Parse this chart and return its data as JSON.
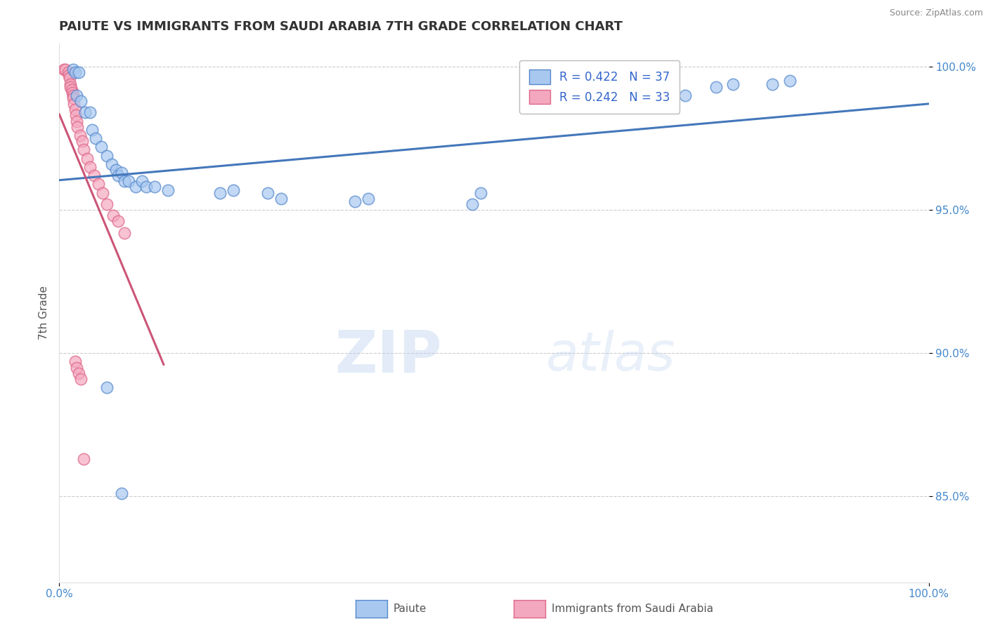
{
  "title": "PAIUTE VS IMMIGRANTS FROM SAUDI ARABIA 7TH GRADE CORRELATION CHART",
  "source": "Source: ZipAtlas.com",
  "ylabel": "7th Grade",
  "xlim": [
    0.0,
    1.0
  ],
  "ylim": [
    0.82,
    1.008
  ],
  "yticks": [
    0.85,
    0.9,
    0.95,
    1.0
  ],
  "ytick_labels": [
    "85.0%",
    "90.0%",
    "95.0%",
    "100.0%"
  ],
  "xtick_labels": [
    "0.0%",
    "100.0%"
  ],
  "legend_R_blue": "R = 0.422",
  "legend_N_blue": "N = 37",
  "legend_R_pink": "R = 0.242",
  "legend_N_pink": "N = 33",
  "blue_color": "#a8c8f0",
  "pink_color": "#f4a8c0",
  "blue_edge_color": "#5588cc",
  "pink_edge_color": "#dd6688",
  "blue_line_color": "#4477bb",
  "pink_line_color": "#cc5577",
  "blue_scatter": [
    [
      0.016,
      0.999
    ],
    [
      0.018,
      0.998
    ],
    [
      0.022,
      0.998
    ],
    [
      0.02,
      0.99
    ],
    [
      0.025,
      0.988
    ],
    [
      0.03,
      0.984
    ],
    [
      0.035,
      0.984
    ],
    [
      0.038,
      0.978
    ],
    [
      0.042,
      0.975
    ],
    [
      0.048,
      0.972
    ],
    [
      0.055,
      0.969
    ],
    [
      0.06,
      0.966
    ],
    [
      0.065,
      0.964
    ],
    [
      0.068,
      0.962
    ],
    [
      0.072,
      0.963
    ],
    [
      0.075,
      0.96
    ],
    [
      0.08,
      0.96
    ],
    [
      0.088,
      0.958
    ],
    [
      0.095,
      0.96
    ],
    [
      0.1,
      0.958
    ],
    [
      0.11,
      0.958
    ],
    [
      0.125,
      0.957
    ],
    [
      0.185,
      0.956
    ],
    [
      0.2,
      0.957
    ],
    [
      0.24,
      0.956
    ],
    [
      0.255,
      0.954
    ],
    [
      0.34,
      0.953
    ],
    [
      0.355,
      0.954
    ],
    [
      0.475,
      0.952
    ],
    [
      0.485,
      0.956
    ],
    [
      0.72,
      0.99
    ],
    [
      0.755,
      0.993
    ],
    [
      0.775,
      0.994
    ],
    [
      0.82,
      0.994
    ],
    [
      0.84,
      0.995
    ],
    [
      0.055,
      0.888
    ],
    [
      0.072,
      0.851
    ]
  ],
  "pink_scatter": [
    [
      0.005,
      0.999
    ],
    [
      0.007,
      0.999
    ],
    [
      0.01,
      0.998
    ],
    [
      0.011,
      0.997
    ],
    [
      0.012,
      0.996
    ],
    [
      0.013,
      0.994
    ],
    [
      0.013,
      0.993
    ],
    [
      0.014,
      0.992
    ],
    [
      0.015,
      0.991
    ],
    [
      0.016,
      0.99
    ],
    [
      0.016,
      0.989
    ],
    [
      0.017,
      0.987
    ],
    [
      0.018,
      0.985
    ],
    [
      0.019,
      0.983
    ],
    [
      0.02,
      0.981
    ],
    [
      0.021,
      0.979
    ],
    [
      0.024,
      0.976
    ],
    [
      0.026,
      0.974
    ],
    [
      0.028,
      0.971
    ],
    [
      0.032,
      0.968
    ],
    [
      0.035,
      0.965
    ],
    [
      0.04,
      0.962
    ],
    [
      0.045,
      0.959
    ],
    [
      0.05,
      0.956
    ],
    [
      0.055,
      0.952
    ],
    [
      0.062,
      0.948
    ],
    [
      0.068,
      0.946
    ],
    [
      0.075,
      0.942
    ],
    [
      0.018,
      0.897
    ],
    [
      0.02,
      0.895
    ],
    [
      0.022,
      0.893
    ],
    [
      0.025,
      0.891
    ],
    [
      0.028,
      0.863
    ]
  ],
  "watermark_zip": "ZIP",
  "watermark_atlas": "atlas",
  "background_color": "#ffffff",
  "grid_color": "#cccccc",
  "title_color": "#333333",
  "axis_label_color": "#555555",
  "tick_color": "#4488cc",
  "source_color": "#888888"
}
